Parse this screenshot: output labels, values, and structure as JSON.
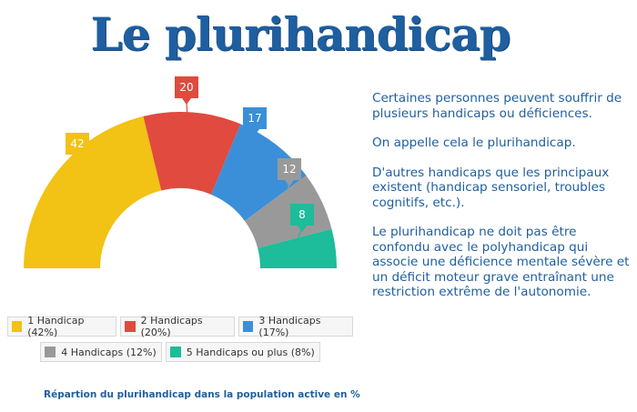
{
  "page": {
    "title": "Le plurihandicap",
    "caption": "Répartion du plurihandicap dans la population active en %"
  },
  "description": {
    "paragraphs": [
      "Certaines personnes peuvent souffrir de plusieurs handicaps ou déficiences.",
      "On appelle cela le plurihandicap.",
      "D'autres handicaps que les principaux existent (handicap sensoriel, troubles cognitifs, etc.).",
      "Le plurihandicap ne doit pas être confondu avec le polyhandicap qui associe une déficience mentale sévère et un déficit moteur grave entraînant une restriction extrême de l'autonomie."
    ]
  },
  "chart_data": {
    "type": "pie",
    "variant": "half-donut",
    "categories": [
      "1 Handicap",
      "2 Handicaps",
      "3 Handicaps",
      "4 Handicaps",
      "5 Handicaps ou plus"
    ],
    "values": [
      42,
      20,
      17,
      12,
      8
    ],
    "data_labels": [
      "42",
      "20",
      "17",
      "12",
      "8"
    ],
    "legend": {
      "placement": "bottom",
      "entries": [
        "1 Handicap (42%)",
        "2 Handicaps (20%)",
        "3 Handicaps (17%)",
        "4 Handicaps (12%)",
        "5 Handicaps ou plus (8%)"
      ]
    },
    "colors": [
      "#f2c214",
      "#e04a3f",
      "#3a8fd8",
      "#999999",
      "#1dbc9a"
    ]
  }
}
